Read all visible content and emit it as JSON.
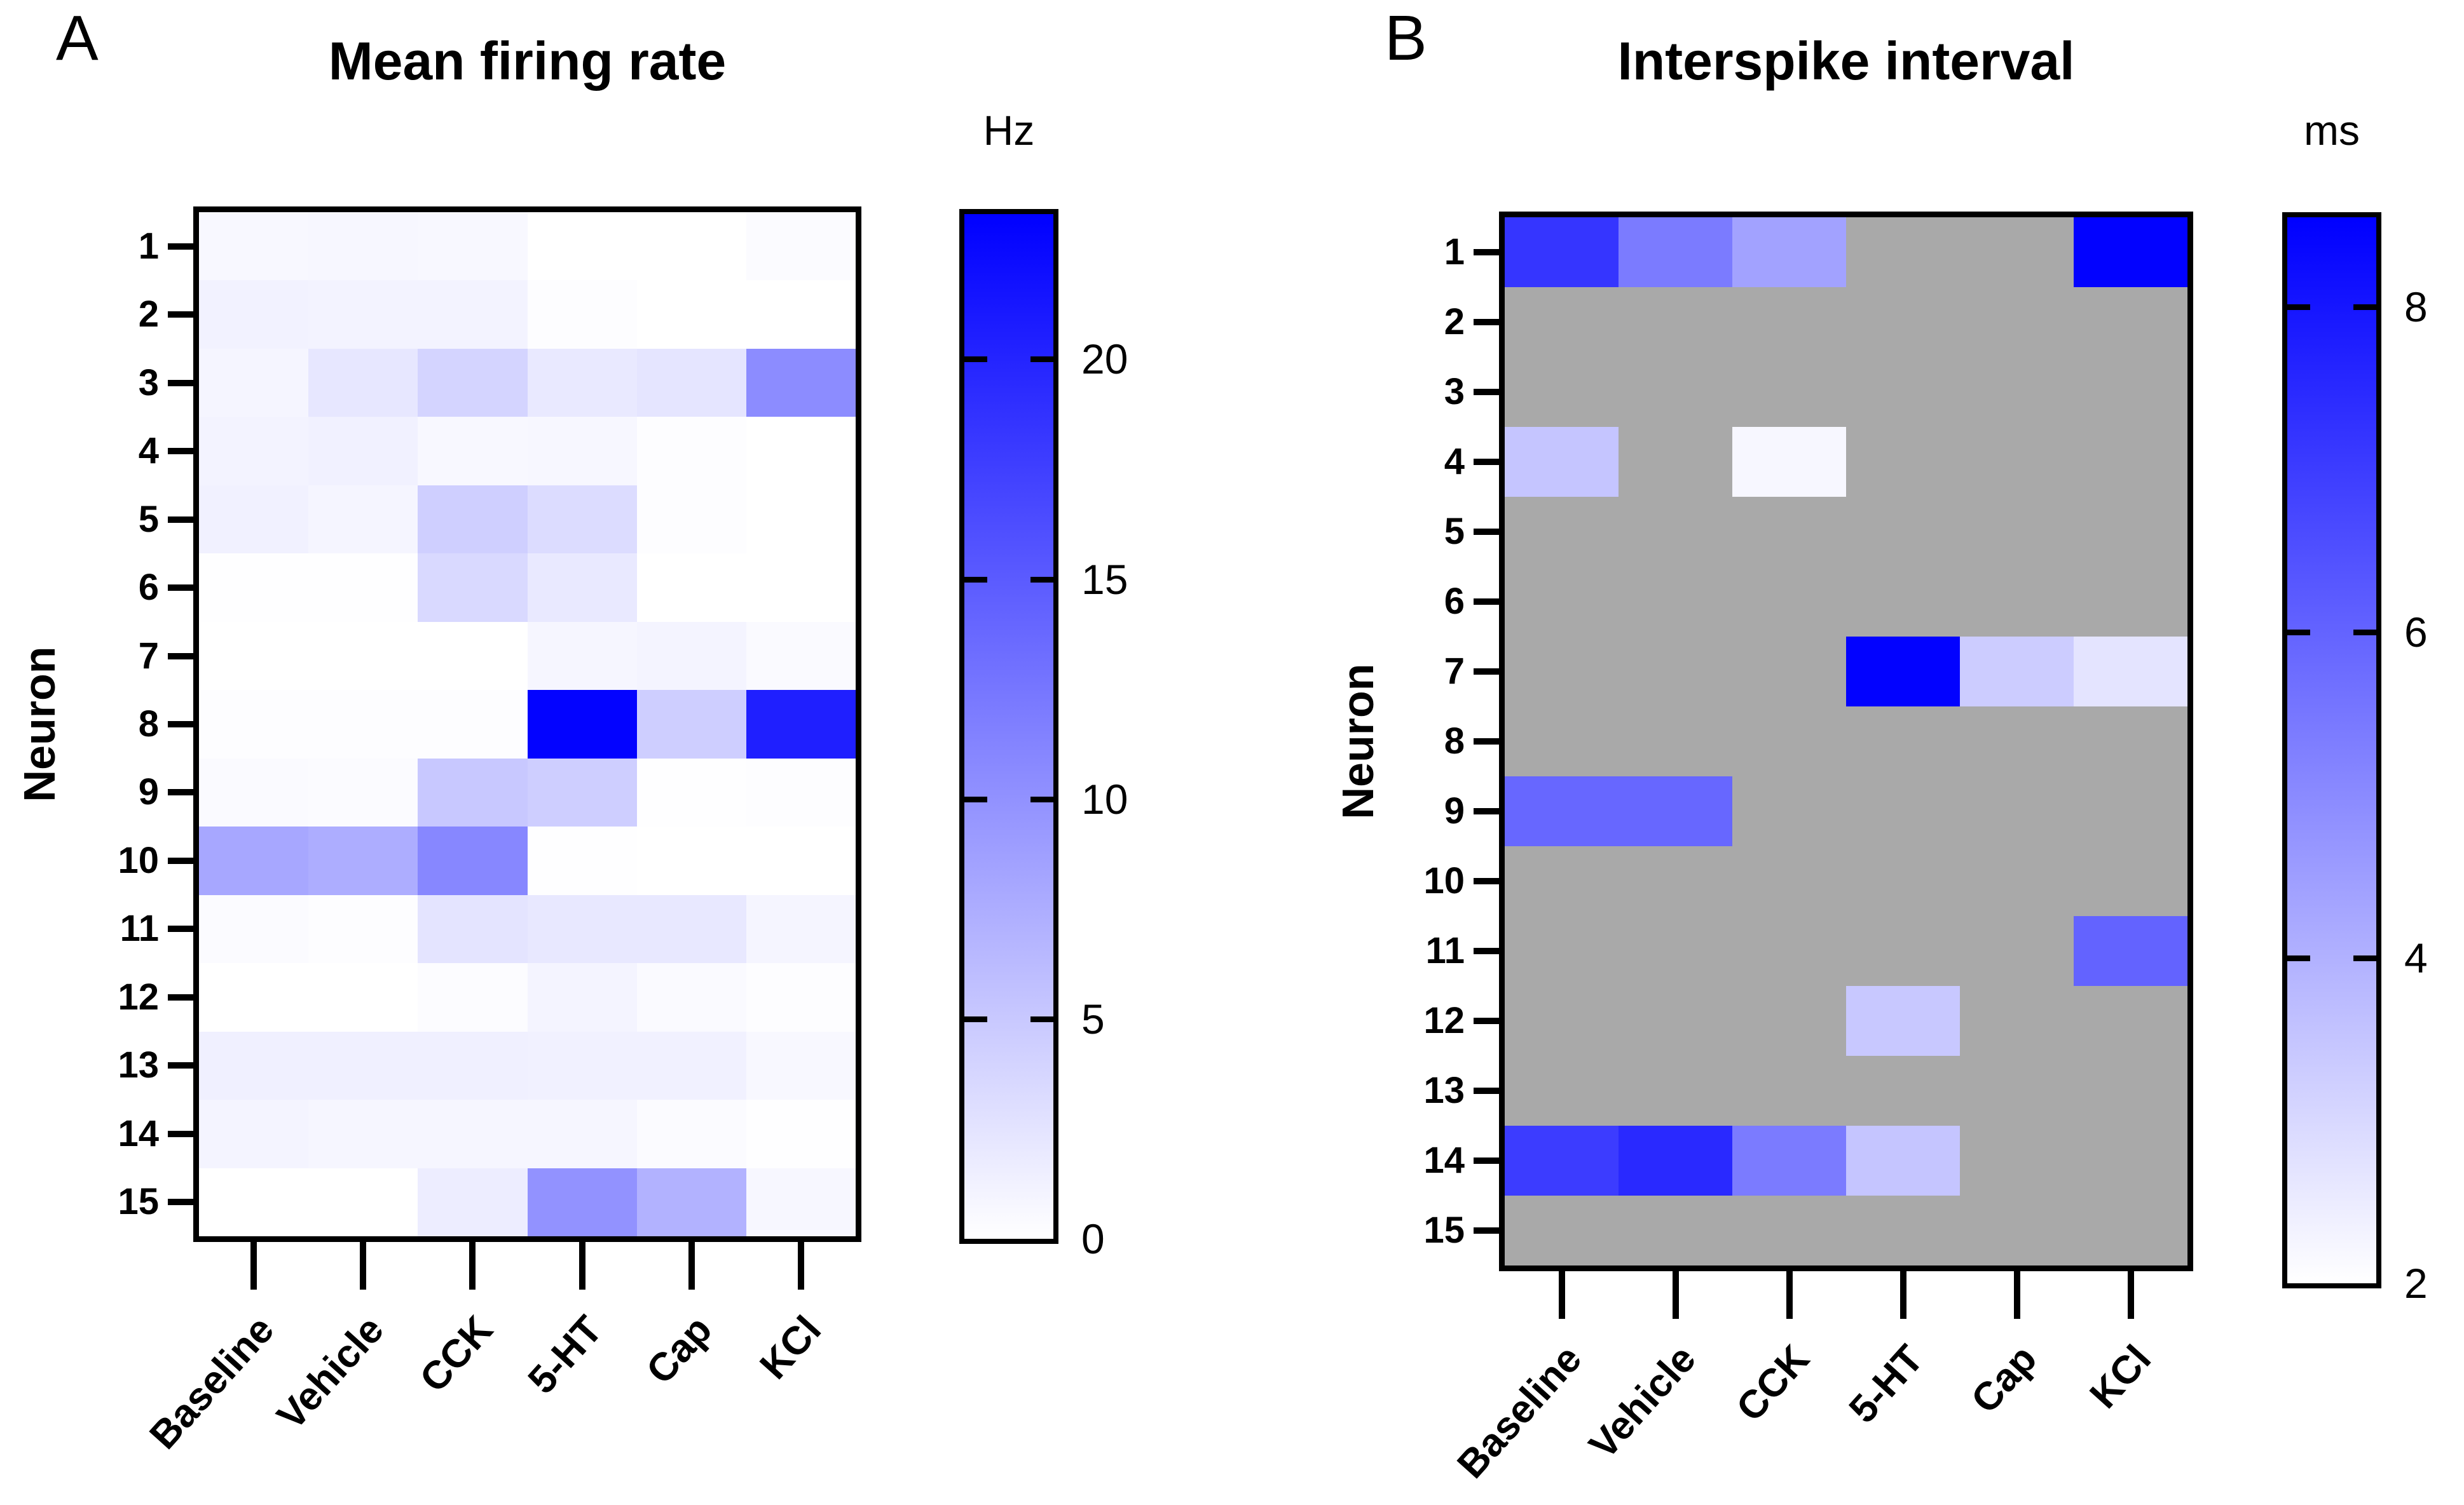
{
  "chart_data": [
    {
      "type": "heatmap",
      "panel_label": "A",
      "title": "Mean firing rate",
      "ylabel": "Neuron",
      "xlabel": "",
      "colorbar_label": "Hz",
      "x_categories": [
        "Baseline",
        "Vehicle",
        "CCK",
        "5-HT",
        "Cap",
        "KCl"
      ],
      "y_categories": [
        "1",
        "2",
        "3",
        "4",
        "5",
        "6",
        "7",
        "8",
        "9",
        "10",
        "11",
        "12",
        "13",
        "14",
        "15"
      ],
      "color_scale": {
        "min": 0,
        "max": 23.3,
        "min_color": "#ffffff",
        "max_color": "#0000ff",
        "ticks": [
          20,
          15,
          10,
          5,
          0
        ]
      },
      "legend_position": "right",
      "grid": false,
      "values": [
        [
          0.6,
          0.7,
          0.6,
          0.0,
          0.0,
          0.4
        ],
        [
          1.2,
          1.1,
          1.1,
          0.2,
          0.0,
          0.0
        ],
        [
          0.9,
          2.2,
          3.9,
          2.0,
          2.4,
          10.5
        ],
        [
          1.1,
          1.3,
          0.6,
          0.7,
          0.2,
          0.0
        ],
        [
          1.3,
          0.9,
          4.4,
          3.2,
          0.2,
          0.0
        ],
        [
          0.1,
          0.1,
          3.5,
          2.0,
          0.0,
          0.0
        ],
        [
          0.0,
          0.0,
          0.0,
          0.8,
          1.0,
          0.5
        ],
        [
          0.2,
          0.2,
          0.2,
          23.0,
          4.5,
          20.5
        ],
        [
          0.5,
          0.4,
          5.0,
          4.5,
          0.1,
          0.2
        ],
        [
          8.0,
          7.5,
          11.0,
          0.1,
          0.0,
          0.0
        ],
        [
          0.4,
          0.2,
          2.5,
          2.1,
          2.1,
          0.9
        ],
        [
          0.0,
          0.0,
          0.3,
          1.0,
          0.5,
          0.2
        ],
        [
          1.4,
          1.4,
          1.4,
          1.3,
          1.3,
          0.6
        ],
        [
          1.0,
          0.8,
          0.8,
          0.8,
          0.4,
          0.1
        ],
        [
          0.0,
          0.0,
          1.6,
          10.0,
          7.0,
          0.7
        ]
      ]
    },
    {
      "type": "heatmap",
      "panel_label": "B",
      "title": "Interspike interval",
      "ylabel": "Neuron",
      "xlabel": "",
      "colorbar_label": "ms",
      "x_categories": [
        "Baseline",
        "Vehicle",
        "CCK",
        "5-HT",
        "Cap",
        "KCl"
      ],
      "y_categories": [
        "1",
        "2",
        "3",
        "4",
        "5",
        "6",
        "7",
        "8",
        "9",
        "10",
        "11",
        "12",
        "13",
        "14",
        "15"
      ],
      "color_scale": {
        "min": 2,
        "max": 8.55,
        "min_color": "#ffffff",
        "max_color": "#0000ff",
        "ticks": [
          8,
          6,
          4,
          2
        ]
      },
      "no_data_color": "#a9a9a9",
      "legend_position": "right",
      "grid": false,
      "values": [
        [
          7.2,
          5.4,
          4.4,
          null,
          null,
          8.5
        ],
        [
          null,
          null,
          null,
          null,
          null,
          null
        ],
        [
          null,
          null,
          null,
          null,
          null,
          null
        ],
        [
          3.5,
          null,
          2.2,
          null,
          null,
          null
        ],
        [
          null,
          null,
          null,
          null,
          null,
          null
        ],
        [
          null,
          null,
          null,
          null,
          null,
          null
        ],
        [
          null,
          null,
          null,
          8.5,
          3.3,
          2.7
        ],
        [
          null,
          null,
          null,
          null,
          null,
          null
        ],
        [
          5.9,
          5.9,
          null,
          null,
          null,
          null
        ],
        [
          null,
          null,
          null,
          null,
          null,
          null
        ],
        [
          null,
          null,
          null,
          null,
          null,
          6.0
        ],
        [
          null,
          null,
          null,
          3.4,
          null,
          null
        ],
        [
          null,
          null,
          null,
          null,
          null,
          null
        ],
        [
          7.0,
          7.5,
          5.4,
          3.5,
          null,
          null
        ],
        [
          null,
          null,
          null,
          null,
          null,
          null
        ]
      ]
    }
  ]
}
